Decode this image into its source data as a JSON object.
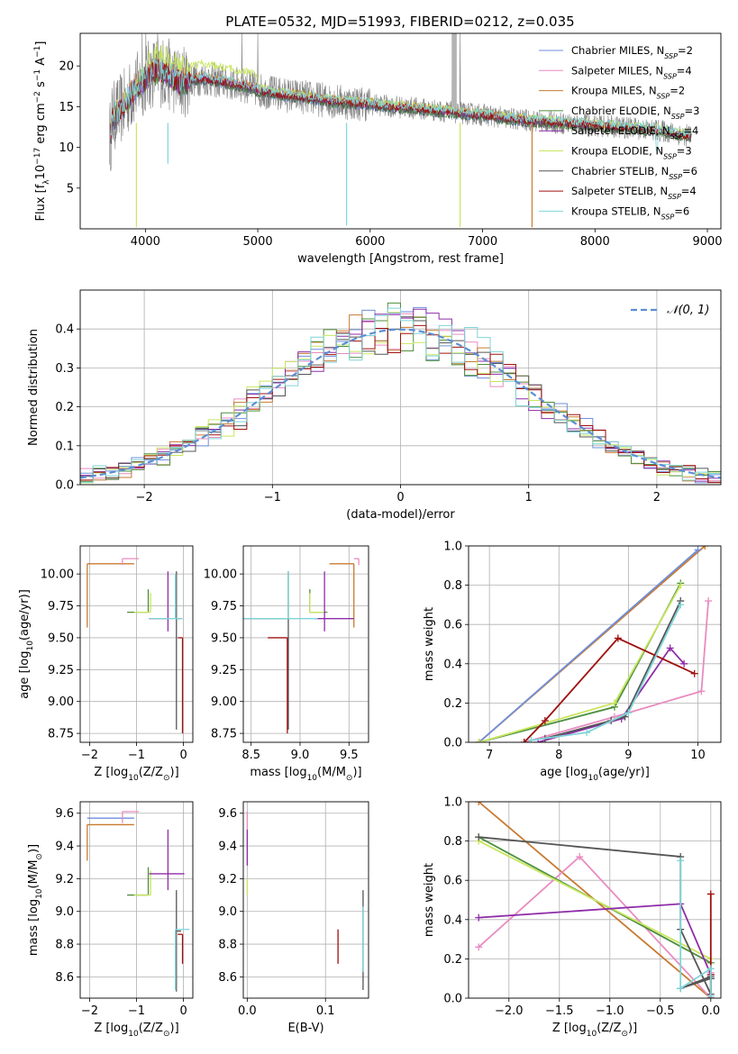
{
  "figure": {
    "title": "PLATE=0532, MJD=51993, FIBERID=0212, z=0.035"
  },
  "colors": {
    "Chabrier MILES": "#6f8fdc",
    "Salpeter MILES": "#e88cc0",
    "Kroupa MILES": "#c87a30",
    "Chabrier ELODIE": "#4f8f3f",
    "Salpeter ELODIE": "#8e2ca8",
    "Kroupa ELODIE": "#c8e660",
    "Chabrier STELIB": "#555555",
    "Salpeter STELIB": "#a01010",
    "Kroupa STELIB": "#7fd4d8"
  },
  "chart_data": [
    {
      "id": "spectrum",
      "type": "line",
      "xlabel": "wavelength [Angstrom, rest frame]",
      "ylabel_parts": [
        "Flux [f",
        "λ",
        "10",
        "−17",
        " erg cm",
        "−2",
        " s",
        "−1",
        " A",
        "−1",
        "]"
      ],
      "xlim": [
        3420,
        9120
      ],
      "ylim": [
        0,
        24
      ],
      "xticks": [
        4000,
        5000,
        6000,
        7000,
        8000,
        9000
      ],
      "yticks": [
        5,
        10,
        15,
        20
      ],
      "grid": false,
      "legend_placement": "top-right",
      "legend": [
        {
          "label": "Chabrier MILES, N",
          "sub": "SSP",
          "tail": "=2",
          "color_key": "Chabrier MILES"
        },
        {
          "label": "Salpeter MILES, N",
          "sub": "SSP",
          "tail": "=4",
          "color_key": "Salpeter MILES"
        },
        {
          "label": "Kroupa MILES, N",
          "sub": "SSP",
          "tail": "=2",
          "color_key": "Kroupa MILES"
        },
        {
          "label": "Chabrier ELODIE, N",
          "sub": "SSP",
          "tail": "=3",
          "color_key": "Chabrier ELODIE"
        },
        {
          "label": "Salpeter ELODIE, N",
          "sub": "SSP",
          "tail": "=4",
          "color_key": "Salpeter ELODIE"
        },
        {
          "label": "Kroupa ELODIE, N",
          "sub": "SSP",
          "tail": "=3",
          "color_key": "Kroupa ELODIE"
        },
        {
          "label": "Chabrier STELIB, N",
          "sub": "SSP",
          "tail": "=6",
          "color_key": "Chabrier STELIB"
        },
        {
          "label": "Salpeter STELIB, N",
          "sub": "SSP",
          "tail": "=4",
          "color_key": "Salpeter STELIB"
        },
        {
          "label": "Kroupa STELIB, N",
          "sub": "SSP",
          "tail": "=6",
          "color_key": "Kroupa STELIB"
        }
      ],
      "data_continuum": [
        [
          3700,
          13.5
        ],
        [
          3800,
          15
        ],
        [
          3900,
          17
        ],
        [
          4000,
          18.5
        ],
        [
          4100,
          19.5
        ],
        [
          4200,
          19
        ],
        [
          4300,
          18
        ],
        [
          4500,
          18.5
        ],
        [
          4700,
          18
        ],
        [
          4900,
          17.5
        ],
        [
          5000,
          17
        ],
        [
          5200,
          16.5
        ],
        [
          5400,
          16.2
        ],
        [
          5600,
          15.8
        ],
        [
          5800,
          15.5
        ],
        [
          6000,
          15.3
        ],
        [
          6200,
          15
        ],
        [
          6400,
          14.8
        ],
        [
          6600,
          14.5
        ],
        [
          6800,
          14.2
        ],
        [
          7000,
          14
        ],
        [
          7200,
          13.6
        ],
        [
          7400,
          13.3
        ],
        [
          7600,
          13.1
        ],
        [
          7800,
          12.9
        ],
        [
          8000,
          12.7
        ],
        [
          8200,
          12.5
        ],
        [
          8400,
          12.3
        ],
        [
          8600,
          12
        ],
        [
          8800,
          11.5
        ]
      ],
      "data_spikes": [
        [
          3970,
          24
        ],
        [
          4005,
          24
        ],
        [
          4110,
          24
        ],
        [
          4860,
          24
        ],
        [
          5000,
          24
        ],
        [
          6730,
          24
        ],
        [
          6760,
          24
        ],
        [
          6800,
          24
        ]
      ],
      "model_dips": [
        [
          3920,
          0.2
        ],
        [
          4200,
          8
        ],
        [
          5790,
          0.4
        ],
        [
          6800,
          0.2
        ],
        [
          7440,
          0.2
        ]
      ]
    },
    {
      "id": "residuals",
      "type": "line",
      "xlabel": "(data-model)/error",
      "ylabel": "Normed distribution",
      "xlim": [
        -2.5,
        2.5
      ],
      "ylim": [
        0,
        0.5
      ],
      "xticks": [
        -2,
        -1,
        0,
        1,
        2
      ],
      "yticks": [
        0.0,
        0.1,
        0.2,
        0.3,
        0.4
      ],
      "grid": true,
      "legend_placement": "top-right",
      "legend": [
        {
          "label": "𝒩(0, 1)",
          "style": "dashed"
        }
      ],
      "bins": {
        "start": -2.5,
        "width": 0.1,
        "count": 50
      }
    },
    {
      "id": "age-vs-Z",
      "type": "scatter",
      "xlabel_parts": [
        "Z [log",
        "10",
        "(Z/Z",
        "⊙",
        ")]"
      ],
      "ylabel_parts": [
        "age  [log",
        "10",
        "(age/yr)]"
      ],
      "xlim": [
        -2.2,
        0.2
      ],
      "ylim": [
        8.68,
        10.22
      ],
      "xticks": [
        -2,
        -1,
        0
      ],
      "yticks": [
        8.75,
        9.0,
        9.25,
        9.5,
        9.75,
        10.0
      ],
      "grid": true,
      "crosses": [
        {
          "k": "Kroupa MILES",
          "x": -2.05,
          "y": 10.08,
          "xerr": [
            0,
            1
          ],
          "yerr": [
            0.5,
            0
          ]
        },
        {
          "k": "Salpeter MILES",
          "x": -1.3,
          "y": 10.12,
          "xerr": [
            0,
            0.35
          ],
          "yerr": [
            0.05,
            0
          ]
        },
        {
          "k": "Chabrier ELODIE",
          "x": -0.75,
          "y": 9.7,
          "xerr": [
            0.45,
            0
          ],
          "yerr": [
            0,
            0.18
          ]
        },
        {
          "k": "Kroupa ELODIE",
          "x": -0.7,
          "y": 9.7,
          "xerr": [
            0.35,
            0
          ],
          "yerr": [
            0,
            0.15
          ]
        },
        {
          "k": "Salpeter ELODIE",
          "x": -0.33,
          "y": 9.65,
          "xerr": [
            0.4,
            0
          ],
          "yerr": [
            0.1,
            0.37
          ]
        },
        {
          "k": "Chabrier STELIB",
          "x": -0.15,
          "y": 9.65,
          "xerr": [
            0,
            0.1
          ],
          "yerr": [
            0.87,
            0.37
          ]
        },
        {
          "k": "Kroupa STELIB",
          "x": -0.17,
          "y": 9.65,
          "xerr": [
            0.55,
            0.15
          ],
          "yerr": [
            0,
            0.35
          ]
        },
        {
          "k": "Salpeter STELIB",
          "x": -0.02,
          "y": 9.5,
          "xerr": [
            0.1,
            0
          ],
          "yerr": [
            0.75,
            0
          ]
        }
      ]
    },
    {
      "id": "age-vs-mass",
      "type": "scatter",
      "xlabel_parts": [
        "mass [log",
        "10",
        "(M/M",
        "⊙",
        ")]"
      ],
      "ylabel": "",
      "xlim": [
        8.42,
        9.7
      ],
      "ylim": [
        8.68,
        10.22
      ],
      "xticks": [
        8.5,
        9.0,
        9.5
      ],
      "yticks": [
        8.75,
        9.0,
        9.25,
        9.5,
        9.75,
        10.0
      ],
      "grid": true,
      "crosses": [
        {
          "k": "Kroupa MILES",
          "x": 9.55,
          "y": 10.08,
          "xerr": [
            0.25,
            0
          ],
          "yerr": [
            0.5,
            0
          ]
        },
        {
          "k": "Salpeter MILES",
          "x": 9.6,
          "y": 10.12,
          "xerr": [
            0.05,
            0
          ],
          "yerr": [
            0.05,
            0
          ]
        },
        {
          "k": "Chabrier ELODIE",
          "x": 9.1,
          "y": 9.7,
          "xerr": [
            0,
            0.18
          ],
          "yerr": [
            0,
            0.18
          ]
        },
        {
          "k": "Kroupa ELODIE",
          "x": 9.1,
          "y": 9.7,
          "xerr": [
            0,
            0.15
          ],
          "yerr": [
            0,
            0.15
          ]
        },
        {
          "k": "Salpeter ELODIE",
          "x": 9.25,
          "y": 9.65,
          "xerr": [
            0.1,
            0.3
          ],
          "yerr": [
            0.1,
            0.37
          ]
        },
        {
          "k": "Chabrier STELIB",
          "x": 8.88,
          "y": 9.65,
          "xerr": [
            0.55,
            0
          ],
          "yerr": [
            0.87,
            0.37
          ]
        },
        {
          "k": "Kroupa STELIB",
          "x": 8.88,
          "y": 9.65,
          "xerr": [
            0.55,
            0.3
          ],
          "yerr": [
            0,
            0.37
          ]
        },
        {
          "k": "Salpeter STELIB",
          "x": 8.87,
          "y": 9.5,
          "xerr": [
            0.2,
            0
          ],
          "yerr": [
            0.75,
            0
          ]
        }
      ]
    },
    {
      "id": "mass-weight-vs-age",
      "type": "line",
      "xlabel_parts": [
        "age  [log",
        "10",
        "(age/yr)]"
      ],
      "ylabel": "mass weight",
      "xlim": [
        6.7,
        10.33
      ],
      "ylim": [
        0,
        1
      ],
      "xticks": [
        7,
        8,
        9,
        10
      ],
      "yticks": [
        0.0,
        0.2,
        0.4,
        0.6,
        0.8,
        1.0
      ],
      "grid": true,
      "series": [
        {
          "k": "Kroupa MILES",
          "x": [
            6.85,
            10.1
          ],
          "y": [
            0,
            1
          ]
        },
        {
          "k": "Chabrier MILES",
          "x": [
            6.85,
            10.0
          ],
          "y": [
            0,
            0.98
          ]
        },
        {
          "k": "Salpeter MILES",
          "x": [
            7.5,
            8.8,
            10.05,
            10.15
          ],
          "y": [
            0,
            0.13,
            0.26,
            0.72
          ]
        },
        {
          "k": "Chabrier ELODIE",
          "x": [
            6.85,
            8.8,
            9.75
          ],
          "y": [
            0,
            0.18,
            0.81
          ]
        },
        {
          "k": "Kroupa ELODIE",
          "x": [
            6.85,
            8.8,
            9.75
          ],
          "y": [
            0,
            0.2,
            0.8
          ]
        },
        {
          "k": "Salpeter ELODIE",
          "x": [
            7.7,
            8.9,
            9.6,
            9.8
          ],
          "y": [
            0,
            0.12,
            0.48,
            0.4
          ]
        },
        {
          "k": "Chabrier STELIB",
          "x": [
            7.8,
            8.75,
            8.95,
            9.75
          ],
          "y": [
            0.02,
            0.11,
            0.13,
            0.72
          ]
        },
        {
          "k": "Salpeter STELIB",
          "x": [
            7.5,
            7.8,
            8.85,
            9.95
          ],
          "y": [
            0,
            0.11,
            0.53,
            0.35
          ]
        },
        {
          "k": "Kroupa STELIB",
          "x": [
            7.6,
            8.4,
            9.0,
            9.75
          ],
          "y": [
            0.01,
            0.05,
            0.15,
            0.7
          ]
        }
      ]
    },
    {
      "id": "mass-vs-Z",
      "type": "scatter",
      "xlabel_parts": [
        "Z [log",
        "10",
        "(Z/Z",
        "⊙",
        ")]"
      ],
      "ylabel_parts": [
        "mass [log",
        "10",
        "(M/M",
        "⊙",
        ")]"
      ],
      "xlim": [
        -2.2,
        0.2
      ],
      "ylim": [
        8.47,
        9.67
      ],
      "xticks": [
        -2,
        -1,
        0
      ],
      "yticks": [
        8.6,
        8.8,
        9.0,
        9.2,
        9.4,
        9.6
      ],
      "grid": true,
      "crosses": [
        {
          "k": "Chabrier MILES",
          "x": -2.05,
          "y": 9.57,
          "xerr": [
            0,
            1
          ],
          "yerr": [
            0,
            0
          ]
        },
        {
          "k": "Kroupa MILES",
          "x": -2.05,
          "y": 9.53,
          "xerr": [
            0,
            1
          ],
          "yerr": [
            0.22,
            0
          ]
        },
        {
          "k": "Salpeter MILES",
          "x": -1.3,
          "y": 9.61,
          "xerr": [
            0,
            0.35
          ],
          "yerr": [
            0.07,
            0
          ]
        },
        {
          "k": "Chabrier ELODIE",
          "x": -0.75,
          "y": 9.1,
          "xerr": [
            0.45,
            0
          ],
          "yerr": [
            0,
            0.17
          ]
        },
        {
          "k": "Kroupa ELODIE",
          "x": -0.7,
          "y": 9.1,
          "xerr": [
            0.35,
            0
          ],
          "yerr": [
            0,
            0.15
          ]
        },
        {
          "k": "Salpeter ELODIE",
          "x": -0.33,
          "y": 9.23,
          "xerr": [
            0.4,
            0.35
          ],
          "yerr": [
            0.1,
            0.27
          ]
        },
        {
          "k": "Chabrier STELIB",
          "x": -0.15,
          "y": 8.88,
          "xerr": [
            0,
            0.1
          ],
          "yerr": [
            0.37,
            0.25
          ]
        },
        {
          "k": "Kroupa STELIB",
          "x": -0.17,
          "y": 8.89,
          "xerr": [
            0,
            0.3
          ],
          "yerr": [
            0.37,
            0
          ]
        },
        {
          "k": "Salpeter STELIB",
          "x": -0.02,
          "y": 8.86,
          "xerr": [
            0.1,
            0
          ],
          "yerr": [
            0.18,
            0
          ]
        }
      ]
    },
    {
      "id": "mass-vs-EBV",
      "type": "scatter",
      "xlabel": "E(B-V)",
      "ylabel": "",
      "xlim": [
        -0.005,
        0.155
      ],
      "ylim": [
        8.47,
        9.67
      ],
      "xticks": [
        0.0,
        0.1
      ],
      "yticks": [
        8.6,
        8.8,
        9.0,
        9.2,
        9.4,
        9.6
      ],
      "grid": true,
      "crosses": [
        {
          "k": "Salpeter MILES",
          "x": 0.0,
          "y": 9.55,
          "xerr": [
            0,
            0
          ],
          "yerr": [
            0.05,
            0.06
          ]
        },
        {
          "k": "Salpeter ELODIE",
          "x": 0.0,
          "y": 9.38,
          "xerr": [
            0,
            0
          ],
          "yerr": [
            0.1,
            0.12
          ]
        },
        {
          "k": "Kroupa ELODIE",
          "x": 0.0,
          "y": 9.15,
          "xerr": [
            0,
            0
          ],
          "yerr": [
            0.05,
            0.05
          ]
        },
        {
          "k": "Salpeter STELIB",
          "x": 0.116,
          "y": 8.79,
          "xerr": [
            0,
            0
          ],
          "yerr": [
            0.11,
            0.1
          ]
        },
        {
          "k": "Chabrier STELIB",
          "x": 0.148,
          "y": 8.82,
          "xerr": [
            0,
            0
          ],
          "yerr": [
            0.3,
            0.31
          ]
        },
        {
          "k": "Kroupa STELIB",
          "x": 0.148,
          "y": 8.83,
          "xerr": [
            0,
            0
          ],
          "yerr": [
            0.2,
            0.2
          ]
        }
      ]
    },
    {
      "id": "mass-weight-vs-Z",
      "type": "line",
      "xlabel_parts": [
        "Z [log",
        "10",
        "(Z/Z",
        "⊙",
        ")]"
      ],
      "ylabel": "mass weight",
      "xlim": [
        -2.4,
        0.1
      ],
      "ylim": [
        0,
        1
      ],
      "xticks": [
        -2.0,
        -1.5,
        -1.0,
        -0.5,
        0.0
      ],
      "yticks": [
        0.0,
        0.2,
        0.4,
        0.6,
        0.8,
        1.0
      ],
      "grid": true,
      "series": [
        {
          "k": "Kroupa MILES",
          "x": [
            -2.3,
            0.0
          ],
          "y": [
            1.0,
            0.0
          ]
        },
        {
          "k": "Salpeter MILES",
          "x": [
            -2.3,
            -1.3,
            0.0,
            0.0
          ],
          "y": [
            0.26,
            0.72,
            0.0,
            0.13
          ]
        },
        {
          "k": "Chabrier ELODIE",
          "x": [
            -2.3,
            0.0
          ],
          "y": [
            0.82,
            0.18
          ]
        },
        {
          "k": "Kroupa ELODIE",
          "x": [
            -2.3,
            0.0
          ],
          "y": [
            0.8,
            0.2
          ]
        },
        {
          "k": "Salpeter ELODIE",
          "x": [
            -2.3,
            -0.3,
            0.0,
            0.0
          ],
          "y": [
            0.41,
            0.48,
            0.12,
            0.1
          ]
        },
        {
          "k": "Chabrier STELIB",
          "x": [
            -2.3,
            -0.3,
            -0.3,
            0.0,
            0.0,
            -0.3,
            0.0
          ],
          "y": [
            0.82,
            0.72,
            0.35,
            0.02,
            0.1,
            0.05,
            0.11
          ]
        },
        {
          "k": "Salpeter STELIB",
          "x": [
            0.0,
            0.0,
            0.0
          ],
          "y": [
            0.53,
            0.12,
            0.0
          ]
        },
        {
          "k": "Kroupa STELIB",
          "x": [
            -0.3,
            -0.3,
            0.0,
            0.0
          ],
          "y": [
            0.7,
            0.05,
            0.15,
            0.01
          ]
        }
      ]
    }
  ]
}
